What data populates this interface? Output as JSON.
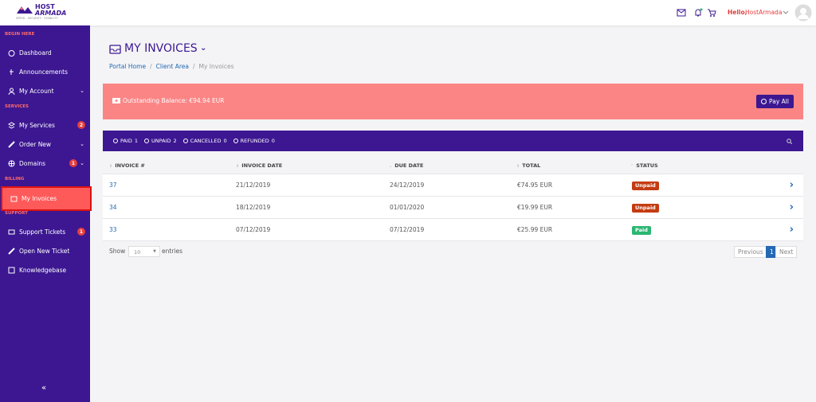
{
  "header": {
    "logo_top": "HOST",
    "logo_bottom": "ARMADA",
    "tagline": "SPEED · SECURITY · STABILITY",
    "greeting": "Hello,",
    "user": "HostArmada"
  },
  "sidebar": {
    "sections": [
      {
        "heading": "BEGIN HERE",
        "items": [
          {
            "label": "Dashboard"
          },
          {
            "label": "Announcements"
          },
          {
            "label": "My Account"
          }
        ]
      },
      {
        "heading": "SERVICES",
        "items": [
          {
            "label": "My Services",
            "badge": 2
          },
          {
            "label": "Order New"
          },
          {
            "label": "Domains",
            "badge": 1
          }
        ]
      },
      {
        "heading": "BILLING",
        "items": [
          {
            "label": "My Invoices"
          }
        ]
      },
      {
        "heading": "SUPPORT",
        "items": [
          {
            "label": "Support Tickets",
            "badge": 1
          },
          {
            "label": "Open New Ticket"
          },
          {
            "label": "Knowledgebase"
          }
        ]
      }
    ],
    "collapse": "«"
  },
  "page": {
    "title": "MY INVOICES",
    "breadcrumb": [
      "Portal Home",
      "Client Area",
      "My Invoices"
    ],
    "balance": "Outstanding Balance: €94.94 EUR",
    "pay_all": "Pay All",
    "filters": [
      {
        "label": "PAID",
        "count": 1
      },
      {
        "label": "UNPAID",
        "count": 2
      },
      {
        "label": "CANCELLED",
        "count": 0
      },
      {
        "label": "REFUNDED",
        "count": 0
      }
    ]
  },
  "table": {
    "columns": [
      "INVOICE #",
      "INVOICE DATE",
      "DUE DATE",
      "TOTAL",
      "STATUS"
    ],
    "rows": [
      [
        "37",
        "21/12/2019",
        "24/12/2019",
        "€74.95 EUR",
        "Unpaid"
      ],
      [
        "34",
        "18/12/2019",
        "01/01/2020",
        "€19.99 EUR",
        "Unpaid"
      ],
      [
        "33",
        "07/12/2019",
        "07/12/2019",
        "€25.99 EUR",
        "Paid"
      ]
    ]
  },
  "footer": {
    "show": "Show",
    "page_size": 10,
    "entries": "entries",
    "previous": "Previous",
    "current_page": 1,
    "next": "Next"
  }
}
